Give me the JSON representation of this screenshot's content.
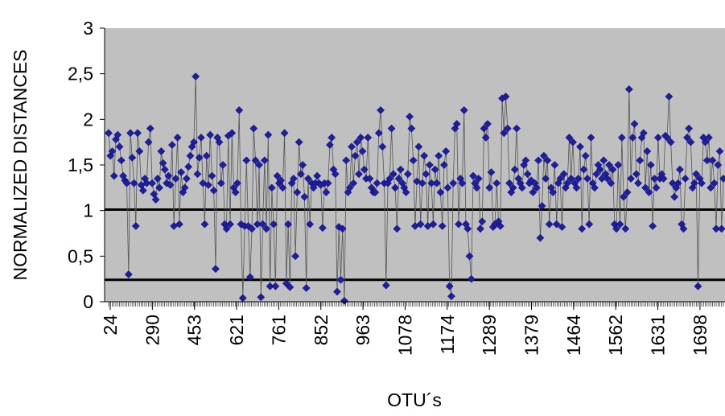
{
  "chart_data": {
    "type": "line",
    "xlabel": "OTU´s",
    "ylabel": "NORMALIZED DISTANCES",
    "ylim": [
      0,
      3
    ],
    "y_ticks": [
      "0",
      "0,5",
      "1",
      "1,5",
      "2",
      "2,5",
      "3"
    ],
    "y_tick_values": [
      0,
      0.5,
      1,
      1.5,
      2,
      2.5,
      3
    ],
    "x_tick_labels": [
      "24",
      "290",
      "453",
      "621",
      "761",
      "852",
      "963",
      "1078",
      "1174",
      "1289",
      "1379",
      "1464",
      "1562",
      "1631",
      "1698"
    ],
    "thresholds": [
      1.01,
      0.24
    ],
    "grid": false,
    "plot_background": "#c0c0c0",
    "marker": "diamond",
    "colors": {
      "series": "#1f1f99",
      "marker_edge": "#000080",
      "line": "#555555",
      "threshold": "#000000"
    },
    "series": [
      {
        "values": [
          1.85,
          1.6,
          1.65,
          1.38,
          1.78,
          1.83,
          1.7,
          1.55,
          1.38,
          1.33,
          1.3,
          0.3,
          1.85,
          1.58,
          1.3,
          0.83,
          1.85,
          1.65,
          1.28,
          1.22,
          1.35,
          1.3,
          1.75,
          1.9,
          1.3,
          1.18,
          1.12,
          1.35,
          1.25,
          1.65,
          1.52,
          1.45,
          1.3,
          1.38,
          1.28,
          1.72,
          0.83,
          1.35,
          1.8,
          0.85,
          1.42,
          1.2,
          1.25,
          1.35,
          1.48,
          1.6,
          1.7,
          1.75,
          2.47,
          1.4,
          1.58,
          1.8,
          1.3,
          0.85,
          1.6,
          1.28,
          1.83,
          1.38,
          1.22,
          0.36,
          1.8,
          1.75,
          1.3,
          1.5,
          0.85,
          0.8,
          1.82,
          0.85,
          1.85,
          1.25,
          1.2,
          1.3,
          2.1,
          0.85,
          0.04,
          0.83,
          1.55,
          0.83,
          0.27,
          0.8,
          1.9,
          1.55,
          0.85,
          1.5,
          0.05,
          0.85,
          1.55,
          0.8,
          1.83,
          0.17,
          1.25,
          0.85,
          0.17,
          1.38,
          1.3,
          1.33,
          1.25,
          1.85,
          0.2,
          0.85,
          0.16,
          1.3,
          1.35,
          0.5,
          1.2,
          1.75,
          1.4,
          1.5,
          1.15,
          0.15,
          1.35,
          0.85,
          1.3,
          1.25,
          1.3,
          1.38,
          1.3,
          1.28,
          0.81,
          1.3,
          1.2,
          1.3,
          1.72,
          1.8,
          1.45,
          1.4,
          0.11,
          0.82,
          0.24,
          0.8,
          0.01,
          1.55,
          1.2,
          1.25,
          1.7,
          1.3,
          1.6,
          1.75,
          1.4,
          1.8,
          1.65,
          1.45,
          1.35,
          1.8,
          1.35,
          1.25,
          1.2,
          1.2,
          1.3,
          1.85,
          2.1,
          1.7,
          1.3,
          0.18,
          1.3,
          1.35,
          1.9,
          1.4,
          1.25,
          0.8,
          1.35,
          1.45,
          1.3,
          1.25,
          1.2,
          1.4,
          2.03,
          1.9,
          1.55,
          0.83,
          1.32,
          1.7,
          0.85,
          1.3,
          1.6,
          1.4,
          0.83,
          1.5,
          1.3,
          0.85,
          1.45,
          1.3,
          1.6,
          1.2,
          0.83,
          1.5,
          1.65,
          1.25,
          0.17,
          0.06,
          1.3,
          1.9,
          1.95,
          0.85,
          1.35,
          1.3,
          2.1,
          0.85,
          0.8,
          0.5,
          0.25,
          1.38,
          1.3,
          1.25,
          1.35,
          0.8,
          0.88,
          1.9,
          1.8,
          1.95,
          1.25,
          1.42,
          0.82,
          0.85,
          1.3,
          0.88,
          0.83,
          2.23,
          1.85,
          2.25,
          1.9,
          1.3,
          1.2,
          1.25,
          1.45,
          1.9,
          1.35,
          1.3,
          1.25,
          1.5,
          1.55,
          1.4,
          1.3,
          1.33,
          1.2,
          1.3,
          1.25,
          1.55,
          0.7,
          1.05,
          1.6,
          1.35,
          1.55,
          0.85,
          1.25,
          1.2,
          1.5,
          0.85,
          1.3,
          1.35,
          0.82,
          1.4,
          1.25,
          1.3,
          1.8,
          1.35,
          1.75,
          1.3,
          1.25,
          1.35,
          1.7,
          0.8,
          1.45,
          1.6,
          1.35,
          0.85,
          1.8,
          1.3,
          1.25,
          1.4,
          1.5,
          1.45,
          1.35,
          1.55,
          1.4,
          1.35,
          1.5,
          1.3,
          1.45,
          0.85,
          0.8,
          1.5,
          0.85,
          1.8,
          1.15,
          0.8,
          1.2,
          2.33,
          1.35,
          1.8,
          1.95,
          1.4,
          1.3,
          1.55,
          1.8,
          1.85,
          1.25,
          1.65,
          1.2,
          1.5,
          0.83,
          1.35,
          1.25,
          1.8,
          1.35,
          1.4,
          1.35,
          1.82,
          1.8,
          2.25,
          1.75,
          1.3,
          1.15,
          1.25,
          1.3,
          1.45,
          0.85,
          0.8,
          1.35,
          1.8,
          1.9,
          1.75,
          1.25,
          1.3,
          1.4,
          0.17,
          1.35,
          1.3,
          1.8,
          1.75,
          1.55,
          1.8,
          1.25,
          1.55,
          1.3,
          0.8,
          1.5,
          1.65,
          0.8,
          1.35
        ]
      }
    ]
  }
}
